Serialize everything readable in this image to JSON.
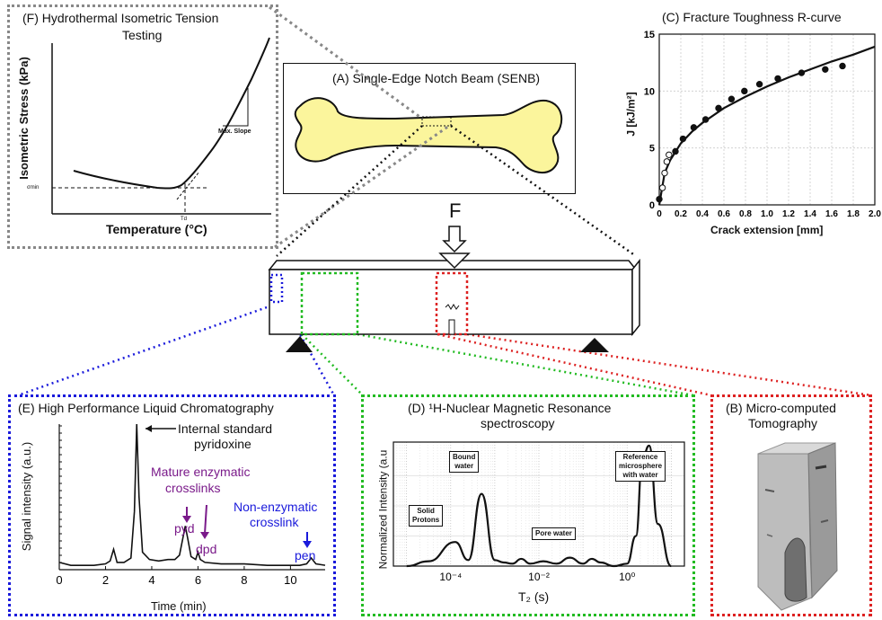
{
  "panel_f": {
    "title_line1": "(F) Hydrothermal Isometric Tension",
    "title_line2": "Testing",
    "ylabel": "Isometric Stress (kPa)",
    "xlabel": "Temperature (°C)",
    "sigma_label": "σmin",
    "td_label": "Td",
    "slope_label": "Max. Slope"
  },
  "panel_a": {
    "title": "(A) Single-Edge Notch Beam (SENB)",
    "force_label": "F"
  },
  "panel_c": {
    "title": "(C) Fracture Toughness R-curve",
    "ylabel": "J [kJ/m²]",
    "xlabel": "Crack extension [mm]",
    "xticks": [
      "0",
      "0.2",
      "0.4",
      "0.6",
      "0.8",
      "1.0",
      "1.2",
      "1.4",
      "1.6",
      "1.8",
      "2.0"
    ],
    "yticks": [
      "0",
      "5",
      "10",
      "15"
    ]
  },
  "panel_e": {
    "title": "(E) High Performance Liquid Chromatography",
    "ylabel": "Signal intensity (a.u.)",
    "xlabel": "Time (min)",
    "xticks": [
      "0",
      "2",
      "4",
      "6",
      "8",
      "10"
    ],
    "ann_internal": "Internal standard",
    "ann_pyridoxine": "pyridoxine",
    "ann_mature1": "Mature enzymatic",
    "ann_mature2": "crosslinks",
    "ann_pyd": "pyd",
    "ann_dpd": "dpd",
    "ann_nonenz1": "Non-enzymatic",
    "ann_nonenz2": "crosslink",
    "ann_pen": "pen"
  },
  "panel_d": {
    "title_line1": "(D) ¹H-Nuclear Magnetic Resonance",
    "title_line2": "spectroscopy",
    "ylabel": "Normalized Intensity (a.u",
    "xlabel": "T₂ (s)",
    "xticks": [
      "10⁻⁴",
      "10⁻²",
      "10⁰"
    ],
    "box_solid1": "Solid",
    "box_solid2": "Protons",
    "box_bound1": "Bound",
    "box_bound2": "water",
    "box_pore": "Pore water",
    "box_ref1": "Reference",
    "box_ref2": "microsphere",
    "box_ref3": "with water"
  },
  "panel_b": {
    "title_line1": "(B) Micro-computed",
    "title_line2": "Tomography"
  },
  "colors": {
    "gray_dotted": "#888888",
    "blue_dotted": "#1a1adb",
    "green_dotted": "#22bb22",
    "red_dotted": "#dd2222",
    "bone_fill": "#fbf59c",
    "purple": "#7a1a8a",
    "blue_text": "#1a1adb"
  },
  "chart_data": [
    {
      "type": "scatter",
      "name_ref": "panel_c",
      "xlim": [
        0,
        2.0
      ],
      "ylim": [
        0,
        15
      ],
      "series": [
        {
          "marker": "open",
          "x": [
            0.03,
            0.05,
            0.07,
            0.09
          ],
          "y": [
            1.5,
            2.8,
            3.8,
            4.4
          ]
        },
        {
          "marker": "filled",
          "x": [
            0.0,
            0.15,
            0.22,
            0.32,
            0.43,
            0.55,
            0.67,
            0.79,
            0.93,
            1.1,
            1.32,
            1.54,
            1.7
          ],
          "y": [
            0.5,
            4.7,
            5.8,
            6.8,
            7.5,
            8.5,
            9.3,
            10.0,
            10.6,
            11.1,
            11.6,
            11.9,
            12.2
          ]
        }
      ],
      "fit_curve": {
        "x": [
          0,
          0.05,
          0.1,
          0.2,
          0.3,
          0.4,
          0.6,
          0.8,
          1.0,
          1.2,
          1.4,
          1.6,
          1.8,
          2.0
        ],
        "y": [
          0,
          2.8,
          3.9,
          5.4,
          6.4,
          7.2,
          8.5,
          9.5,
          10.4,
          11.2,
          11.9,
          12.6,
          13.2,
          13.9
        ]
      },
      "grid": true
    },
    {
      "type": "line",
      "name_ref": "panel_e",
      "xlim": [
        0,
        11.5
      ],
      "x": [
        0,
        0.5,
        1,
        1.5,
        2,
        2.2,
        2.35,
        2.5,
        2.8,
        3.1,
        3.25,
        3.35,
        3.45,
        3.6,
        3.9,
        4.3,
        4.7,
        5.0,
        5.2,
        5.35,
        5.45,
        5.55,
        5.7,
        5.9,
        6.0,
        6.1,
        6.3,
        7,
        8,
        9,
        10,
        10.4,
        10.7,
        10.9,
        11.1,
        11.5
      ],
      "y": [
        0.05,
        0.03,
        0.03,
        0.03,
        0.04,
        0.06,
        0.14,
        0.05,
        0.05,
        0.08,
        0.4,
        1.0,
        0.5,
        0.12,
        0.07,
        0.06,
        0.07,
        0.07,
        0.1,
        0.22,
        0.3,
        0.22,
        0.09,
        0.07,
        0.12,
        0.07,
        0.05,
        0.04,
        0.04,
        0.03,
        0.03,
        0.03,
        0.04,
        0.08,
        0.04,
        0.03
      ]
    },
    {
      "type": "line",
      "name_ref": "panel_d",
      "x_log10": [
        -5,
        -4.5,
        -3.9,
        -3.6,
        -3.3,
        -3.0,
        -2.8,
        -2.6,
        -2.4,
        -2.2,
        -1.9,
        -1.6,
        -1.3,
        -1.0,
        -0.8,
        -0.6,
        -0.3,
        0.0,
        0.2,
        0.35,
        0.5,
        0.7,
        1.0
      ],
      "y": [
        0.0,
        0.04,
        0.2,
        0.05,
        0.6,
        0.05,
        0.03,
        0.02,
        0.06,
        0.02,
        0.04,
        0.02,
        0.07,
        0.02,
        0.06,
        0.03,
        0.0,
        0.02,
        0.25,
        0.9,
        1.0,
        0.35,
        0.0
      ]
    }
  ]
}
